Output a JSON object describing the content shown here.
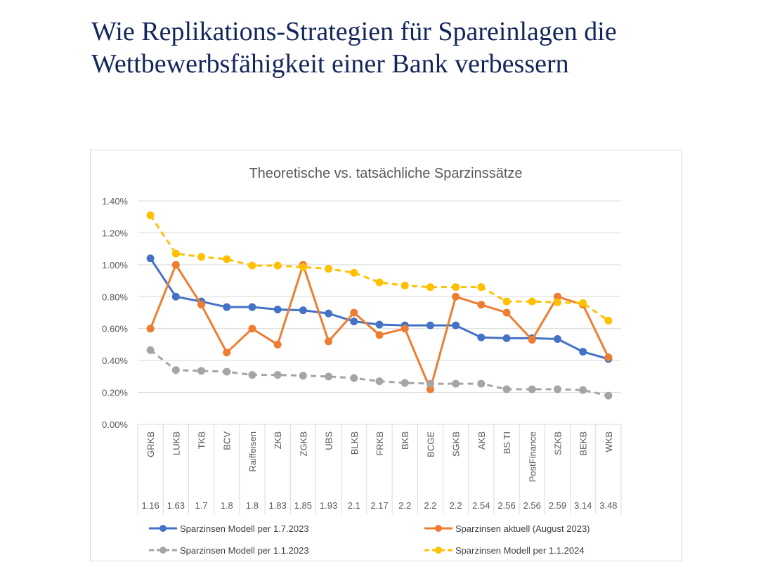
{
  "page": {
    "title_line1": "Wie Replikations-Strategien für Spareinlagen die",
    "title_line2": "Wettbewerbsfähigkeit einer Bank verbessern"
  },
  "chart_data": {
    "type": "line",
    "title": "Theoretische vs. tatsächliche Sparzinssätze",
    "xlabel": "",
    "ylabel": "",
    "ylim": [
      0,
      1.4
    ],
    "y_tick_step": 0.2,
    "y_tick_labels": [
      "0.00%",
      "0.20%",
      "0.40%",
      "0.60%",
      "0.80%",
      "1.00%",
      "1.20%",
      "1.40%"
    ],
    "grid": true,
    "legend_position": "bottom",
    "categories": [
      "GRKB",
      "LUKB",
      "TKB",
      "BCV",
      "Raiffeisen",
      "ZKB",
      "ZGKB",
      "UBS",
      "BLKB",
      "FRKB",
      "BKB",
      "BCGE",
      "SGKB",
      "AKB",
      "BS TI",
      "PostFinance",
      "SZKB",
      "BEKB",
      "WKB"
    ],
    "category_values": [
      "1.16",
      "1.63",
      "1.7",
      "1.8",
      "1.8",
      "1.83",
      "1.85",
      "1.93",
      "2.1",
      "2.17",
      "2.2",
      "2.2",
      "2.2",
      "2.54",
      "2.56",
      "2.56",
      "2.59",
      "3.14",
      "3.48"
    ],
    "series": [
      {
        "name": "Sparzinsen Modell per 1.7.2023",
        "color": "#4472c4",
        "dashed": false,
        "values": [
          1.04,
          0.8,
          0.77,
          0.735,
          0.735,
          0.72,
          0.715,
          0.695,
          0.645,
          0.625,
          0.62,
          0.62,
          0.62,
          0.545,
          0.54,
          0.54,
          0.535,
          0.455,
          0.41
        ]
      },
      {
        "name": "Sparzinsen aktuell (August 2023)",
        "color": "#ed7d31",
        "dashed": false,
        "values": [
          0.6,
          1.0,
          0.75,
          0.45,
          0.6,
          0.5,
          1.0,
          0.52,
          0.7,
          0.56,
          0.6,
          0.22,
          0.8,
          0.75,
          0.7,
          0.53,
          0.8,
          0.75,
          0.42
        ]
      },
      {
        "name": "Sparzinsen Modell per 1.1.2023",
        "color": "#a5a5a5",
        "dashed": true,
        "values": [
          0.465,
          0.34,
          0.335,
          0.33,
          0.31,
          0.31,
          0.305,
          0.3,
          0.29,
          0.27,
          0.26,
          0.255,
          0.255,
          0.255,
          0.22,
          0.22,
          0.22,
          0.215,
          0.18
        ]
      },
      {
        "name": "Sparzinsen Modell per 1.1.2024",
        "color": "#ffc000",
        "dashed": true,
        "values": [
          1.31,
          1.07,
          1.05,
          1.035,
          0.995,
          0.995,
          0.985,
          0.975,
          0.95,
          0.89,
          0.87,
          0.86,
          0.86,
          0.86,
          0.77,
          0.77,
          0.765,
          0.76,
          0.65
        ]
      }
    ],
    "legend_order": [
      0,
      1,
      2,
      3
    ]
  }
}
